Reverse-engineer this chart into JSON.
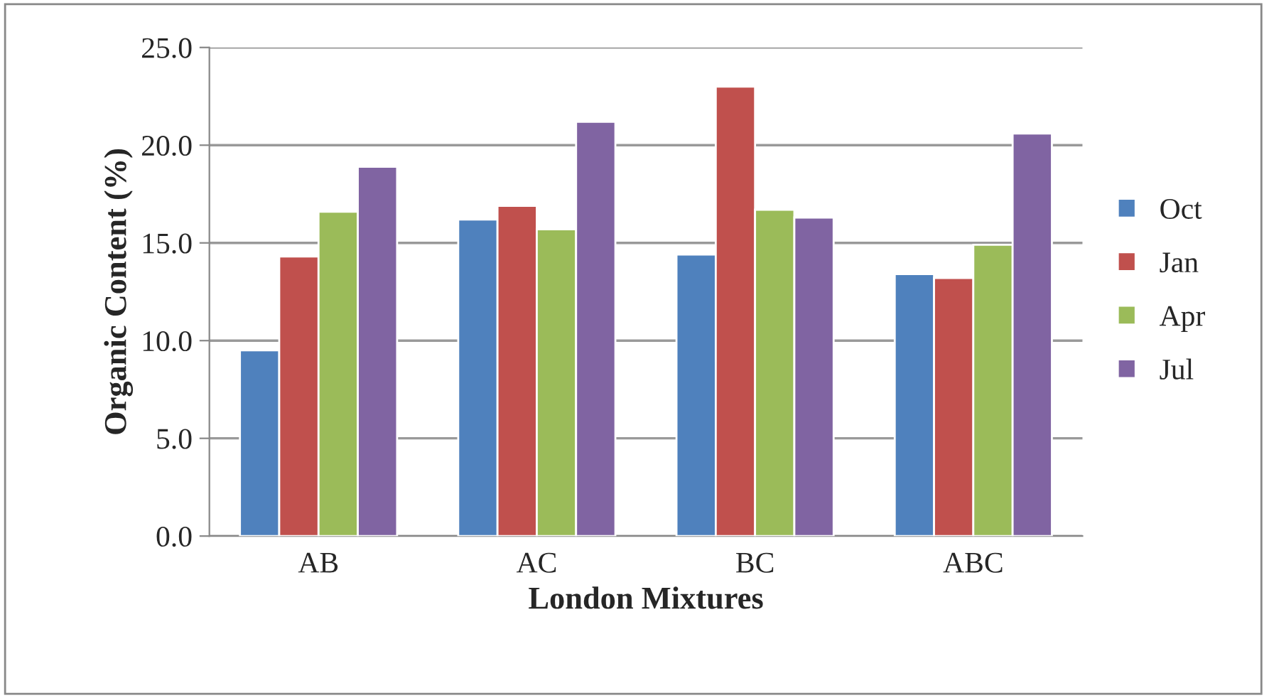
{
  "chart_data": {
    "type": "bar",
    "xlabel": "London Mixtures",
    "ylabel": "Organic Content (%)",
    "categories": [
      "AB",
      "AC",
      "BC",
      "ABC"
    ],
    "series": [
      {
        "name": "Oct",
        "color": "#4f81bd",
        "values": [
          9.5,
          16.2,
          14.4,
          13.4
        ]
      },
      {
        "name": "Jan",
        "color": "#c0504d",
        "values": [
          14.3,
          16.9,
          23.0,
          13.2
        ]
      },
      {
        "name": "Apr",
        "color": "#9bbb59",
        "values": [
          16.6,
          15.7,
          16.7,
          14.9
        ]
      },
      {
        "name": "Jul",
        "color": "#8064a2",
        "values": [
          18.9,
          21.2,
          16.3,
          20.6
        ]
      }
    ],
    "ylim": [
      0,
      25
    ],
    "yticks": [
      {
        "value": 0,
        "label": "0.0"
      },
      {
        "value": 5,
        "label": "5.0"
      },
      {
        "value": 10,
        "label": "10.0"
      },
      {
        "value": 15,
        "label": "15.0"
      },
      {
        "value": 20,
        "label": "20.0"
      },
      {
        "value": 25,
        "label": "25.0"
      }
    ],
    "grid": "y",
    "legend": "right"
  }
}
